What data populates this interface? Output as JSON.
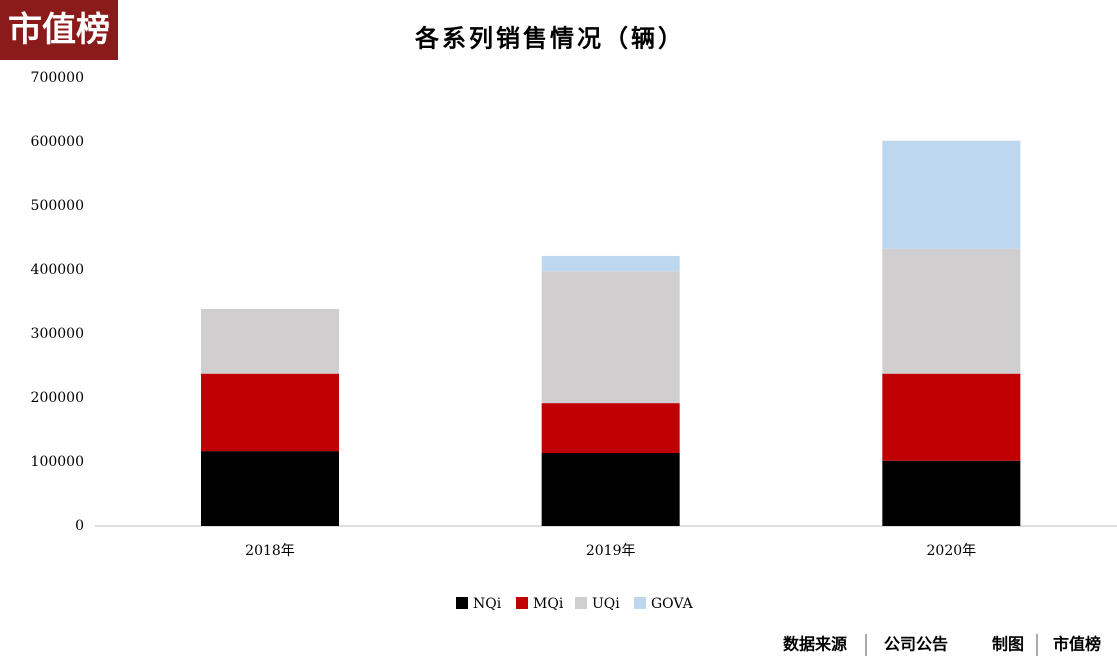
{
  "chart_data": {
    "type": "stacked_bar",
    "title": "各系列销售情况（辆）",
    "logo": "市值榜",
    "source_label": "数据来源",
    "source": "公司公告",
    "credit_label": "制图",
    "credit": "市值榜",
    "categories": [
      "2018年",
      "2019年",
      "2020年"
    ],
    "series": [
      {
        "name": "NQi",
        "color": "#000000",
        "values": [
          117000,
          114000,
          102000
        ]
      },
      {
        "name": "MQi",
        "color": "#c00000",
        "values": [
          121000,
          78000,
          136000
        ]
      },
      {
        "name": "UQi",
        "color": "#d0cece",
        "values": [
          101000,
          206000,
          195000
        ]
      },
      {
        "name": "GOVA",
        "color": "#bdd7ee",
        "values": [
          0,
          24000,
          169000
        ]
      }
    ],
    "ylim": [
      0,
      700000
    ],
    "yticks": [
      0,
      100000,
      200000,
      300000,
      400000,
      500000,
      600000,
      700000
    ],
    "grid": false,
    "legend": "bottom"
  }
}
